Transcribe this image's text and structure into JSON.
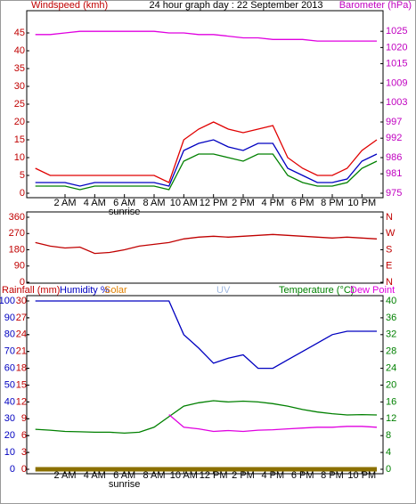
{
  "chart_data": [
    {
      "type": "line",
      "title": "24 hour graph day : 22 September 2013",
      "ylabel": "Windspeed (kmh)",
      "ylabel_color": "#c00000",
      "y2label": "Barometer (hPa)",
      "y2label_color": "#c000c0",
      "x": [
        0,
        1,
        2,
        3,
        4,
        5,
        6,
        7,
        8,
        9,
        10,
        11,
        12,
        13,
        14,
        15,
        16,
        17,
        18,
        19,
        20,
        21,
        22,
        23
      ],
      "xlim": [
        -0.4,
        23.3
      ],
      "xticks": [
        {
          "value": 2,
          "label": "2 AM"
        },
        {
          "value": 4,
          "label": "4 AM"
        },
        {
          "value": 6,
          "label": "6 AM"
        },
        {
          "value": 8,
          "label": "8 AM"
        },
        {
          "value": 10,
          "label": "10 AM"
        },
        {
          "value": 12,
          "label": "12 PM"
        },
        {
          "value": 14,
          "label": "2 PM"
        },
        {
          "value": 16,
          "label": "4 PM"
        },
        {
          "value": 18,
          "label": "6 PM"
        },
        {
          "value": 20,
          "label": "8 PM"
        },
        {
          "value": 22,
          "label": "10 PM"
        }
      ],
      "annotation": {
        "text": "sunrise",
        "x": 6
      },
      "ylim": [
        0,
        50
      ],
      "yticks": [
        0,
        5,
        10,
        15,
        20,
        25,
        30,
        35,
        40,
        45
      ],
      "ytick_color": "#c00000",
      "y2lim": [
        975,
        1030
      ],
      "y2ticks": [
        975,
        981,
        986,
        992,
        997,
        1003,
        1009,
        1015,
        1020,
        1025
      ],
      "y2tick_color": "#c000c0",
      "series": [
        {
          "color": "#e00000",
          "values": [
            7,
            5,
            5,
            5,
            5,
            5,
            5,
            5,
            5,
            3,
            15,
            18,
            20,
            18,
            17,
            18,
            19,
            10,
            7,
            5,
            5,
            7,
            12,
            15
          ]
        },
        {
          "color": "#0000c0",
          "values": [
            3,
            3,
            3,
            2,
            3,
            3,
            3,
            3,
            3,
            2,
            12,
            14,
            15,
            13,
            12,
            14,
            14,
            7,
            5,
            3,
            3,
            4,
            9,
            11
          ]
        },
        {
          "color": "#008000",
          "values": [
            2,
            2,
            2,
            1,
            2,
            2,
            2,
            2,
            2,
            1,
            9,
            11,
            11,
            10,
            9,
            11,
            11,
            5,
            3,
            2,
            2,
            3,
            7,
            9
          ]
        },
        {
          "color": "#e000e0",
          "axis": "y2",
          "values": [
            1024,
            1024,
            1024.5,
            1025,
            1025,
            1025,
            1025,
            1025,
            1025,
            1024.5,
            1024.5,
            1024,
            1024,
            1023.5,
            1023,
            1023,
            1022.5,
            1022.5,
            1022.5,
            1022,
            1022,
            1022,
            1022,
            1022
          ]
        }
      ]
    },
    {
      "type": "line",
      "x": [
        0,
        1,
        2,
        3,
        4,
        5,
        6,
        7,
        8,
        9,
        10,
        11,
        12,
        13,
        14,
        15,
        16,
        17,
        18,
        19,
        20,
        21,
        22,
        23
      ],
      "xlim": [
        -0.4,
        23.3
      ],
      "ylim": [
        0,
        360
      ],
      "yticks": [
        0,
        90,
        180,
        270,
        360
      ],
      "ytick_color": "#c00000",
      "y2lim": [
        0,
        360
      ],
      "y2ticks": [
        {
          "value": 0,
          "label": "N"
        },
        {
          "value": 90,
          "label": "E"
        },
        {
          "value": 180,
          "label": "S"
        },
        {
          "value": 270,
          "label": "W"
        },
        {
          "value": 360,
          "label": "N"
        }
      ],
      "y2tick_color": "#c00000",
      "series": [
        {
          "color": "#c00000",
          "values": [
            220,
            200,
            190,
            195,
            160,
            165,
            180,
            200,
            210,
            220,
            240,
            250,
            255,
            250,
            255,
            260,
            265,
            260,
            255,
            250,
            245,
            250,
            245,
            240
          ]
        }
      ]
    },
    {
      "type": "line",
      "x": [
        0,
        1,
        2,
        3,
        4,
        5,
        6,
        7,
        8,
        9,
        10,
        11,
        12,
        13,
        14,
        15,
        16,
        17,
        18,
        19,
        20,
        21,
        22,
        23
      ],
      "xlim": [
        -0.4,
        23.3
      ],
      "xticks": [
        {
          "value": 2,
          "label": "2 AM"
        },
        {
          "value": 4,
          "label": "4 AM"
        },
        {
          "value": 6,
          "label": "6 AM"
        },
        {
          "value": 8,
          "label": "8 AM"
        },
        {
          "value": 10,
          "label": "10 AM"
        },
        {
          "value": 12,
          "label": "12 PM"
        },
        {
          "value": 14,
          "label": "2 PM"
        },
        {
          "value": 16,
          "label": "4 PM"
        },
        {
          "value": 18,
          "label": "6 PM"
        },
        {
          "value": 20,
          "label": "8 PM"
        },
        {
          "value": 22,
          "label": "10 PM"
        }
      ],
      "annotation": {
        "text": "sunrise",
        "x": 6
      },
      "ylim": [
        0,
        100
      ],
      "yticks": [
        0,
        10,
        20,
        30,
        40,
        50,
        60,
        70,
        80,
        90,
        100
      ],
      "ytick_color": "#0000c0",
      "y3lim": [
        0,
        30
      ],
      "y3ticks": [
        0,
        3,
        6,
        9,
        12,
        15,
        18,
        21,
        24,
        27,
        30
      ],
      "y3tick_color": "#c00000",
      "y2lim": [
        0,
        40
      ],
      "y2ticks": [
        0,
        4,
        8,
        12,
        16,
        20,
        24,
        28,
        32,
        36,
        40
      ],
      "y2tick_color": "#008000",
      "series": [
        {
          "name": "Rainfall (mm)",
          "color": "#c00000",
          "mark_color": "#8b7000",
          "axis": "y3",
          "values": [
            0,
            0,
            0,
            0,
            0,
            0,
            0,
            0,
            0,
            0,
            0,
            0,
            0,
            0,
            0,
            0,
            0,
            0,
            0,
            0,
            0,
            0,
            0,
            0
          ]
        },
        {
          "name": "Humidity %",
          "color": "#0000c0",
          "values": [
            100,
            100,
            100,
            100,
            100,
            100,
            100,
            100,
            100,
            100,
            80,
            72,
            63,
            66,
            68,
            60,
            60,
            65,
            70,
            75,
            80,
            82,
            82,
            82
          ]
        },
        {
          "name": "Solar",
          "color": "#e08000"
        },
        {
          "name": "UV",
          "color": "#a0b8e0"
        },
        {
          "name": "Temperature (°C)",
          "color": "#008000",
          "axis": "y2",
          "values": [
            9.5,
            9.3,
            9,
            8.9,
            8.8,
            8.8,
            8.6,
            8.8,
            10,
            12.5,
            15,
            15.8,
            16.3,
            16,
            16.2,
            16,
            15.6,
            15,
            14.2,
            13.6,
            13.2,
            12.9,
            13,
            12.9
          ]
        },
        {
          "name": "Dew Point",
          "color": "#e000e0",
          "axis": "y2",
          "values": [
            null,
            null,
            null,
            null,
            null,
            null,
            null,
            null,
            null,
            13,
            10,
            9.6,
            9,
            9.2,
            9,
            9.3,
            9.4,
            9.6,
            9.8,
            10,
            10,
            10.2,
            10.2,
            10
          ]
        }
      ]
    }
  ]
}
